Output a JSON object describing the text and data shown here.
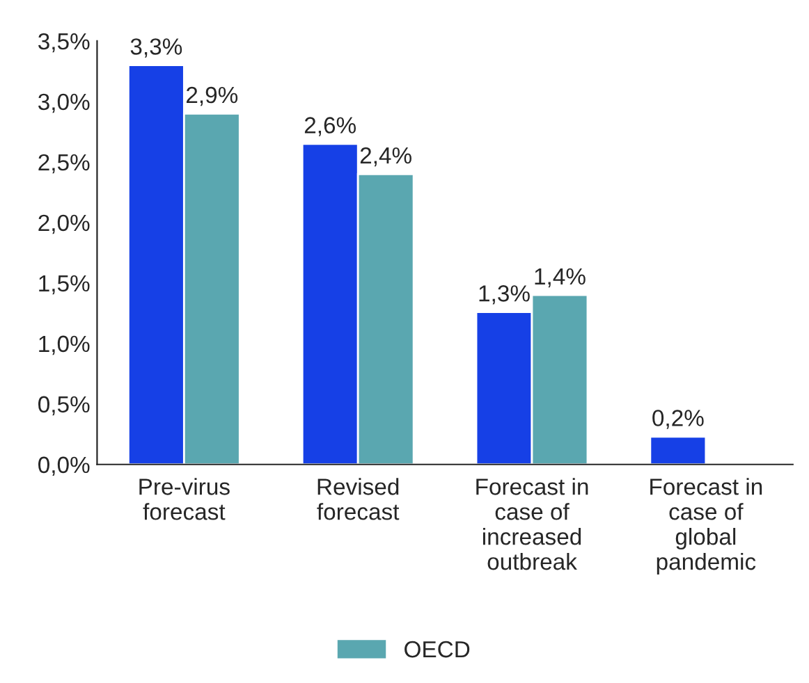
{
  "chart_data": {
    "type": "bar",
    "categories": [
      "Pre-virus\nforecast",
      "Revised\nforecast",
      "Forecast in\ncase of\nincreased\noutbreak",
      "Forecast in\ncase of\nglobal\npandemic"
    ],
    "series": [
      {
        "color": "#1640e6",
        "values": [
          3.3,
          2.65,
          1.26,
          0.23
        ],
        "value_labels": [
          "3,3%",
          "2,6%",
          "1,3%",
          "0,2%"
        ]
      },
      {
        "name": "OECD",
        "color": "#5aa7b0",
        "values": [
          2.9,
          2.4,
          1.4,
          null
        ],
        "value_labels": [
          "2,9%",
          "2,4%",
          "1,4%",
          null
        ]
      }
    ],
    "ylim": [
      0,
      3.5
    ],
    "yticks": [
      {
        "value": 0,
        "label": "0,0%"
      },
      {
        "value": 0.5,
        "label": "0,5%"
      },
      {
        "value": 1,
        "label": "1,0%"
      },
      {
        "value": 1.5,
        "label": "1,5%"
      },
      {
        "value": 2,
        "label": "2,0%"
      },
      {
        "value": 2.5,
        "label": "2,5%"
      },
      {
        "value": 3,
        "label": "3,0%"
      },
      {
        "value": 3.5,
        "label": "3,5%"
      }
    ],
    "grid": false,
    "legend": "bottom"
  }
}
